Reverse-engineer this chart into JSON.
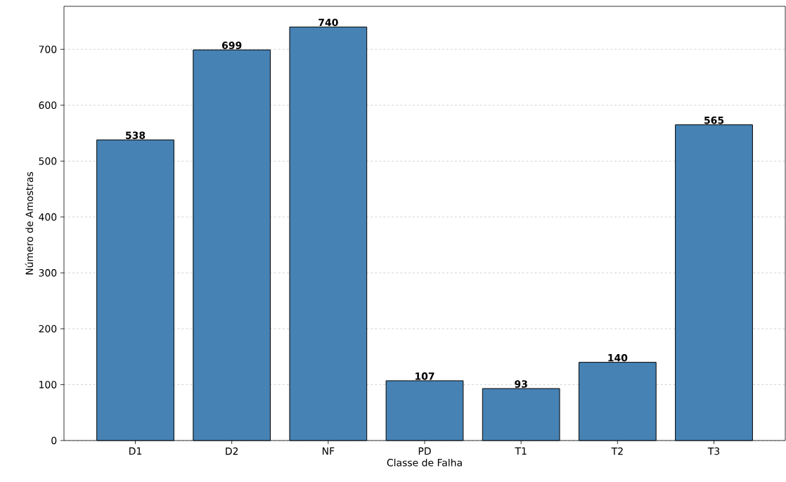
{
  "chart_data": {
    "type": "bar",
    "xlabel": "Classe de Falha",
    "ylabel": "Número de Amostras",
    "categories": [
      "D1",
      "D2",
      "NF",
      "PD",
      "T1",
      "T2",
      "T3"
    ],
    "values": [
      538,
      699,
      740,
      107,
      93,
      140,
      565
    ],
    "color": "#4682b4",
    "ylim": [
      0,
      777
    ],
    "yticks": [
      0,
      100,
      200,
      300,
      400,
      500,
      600,
      700
    ],
    "grid": "y",
    "data_labels": true
  }
}
